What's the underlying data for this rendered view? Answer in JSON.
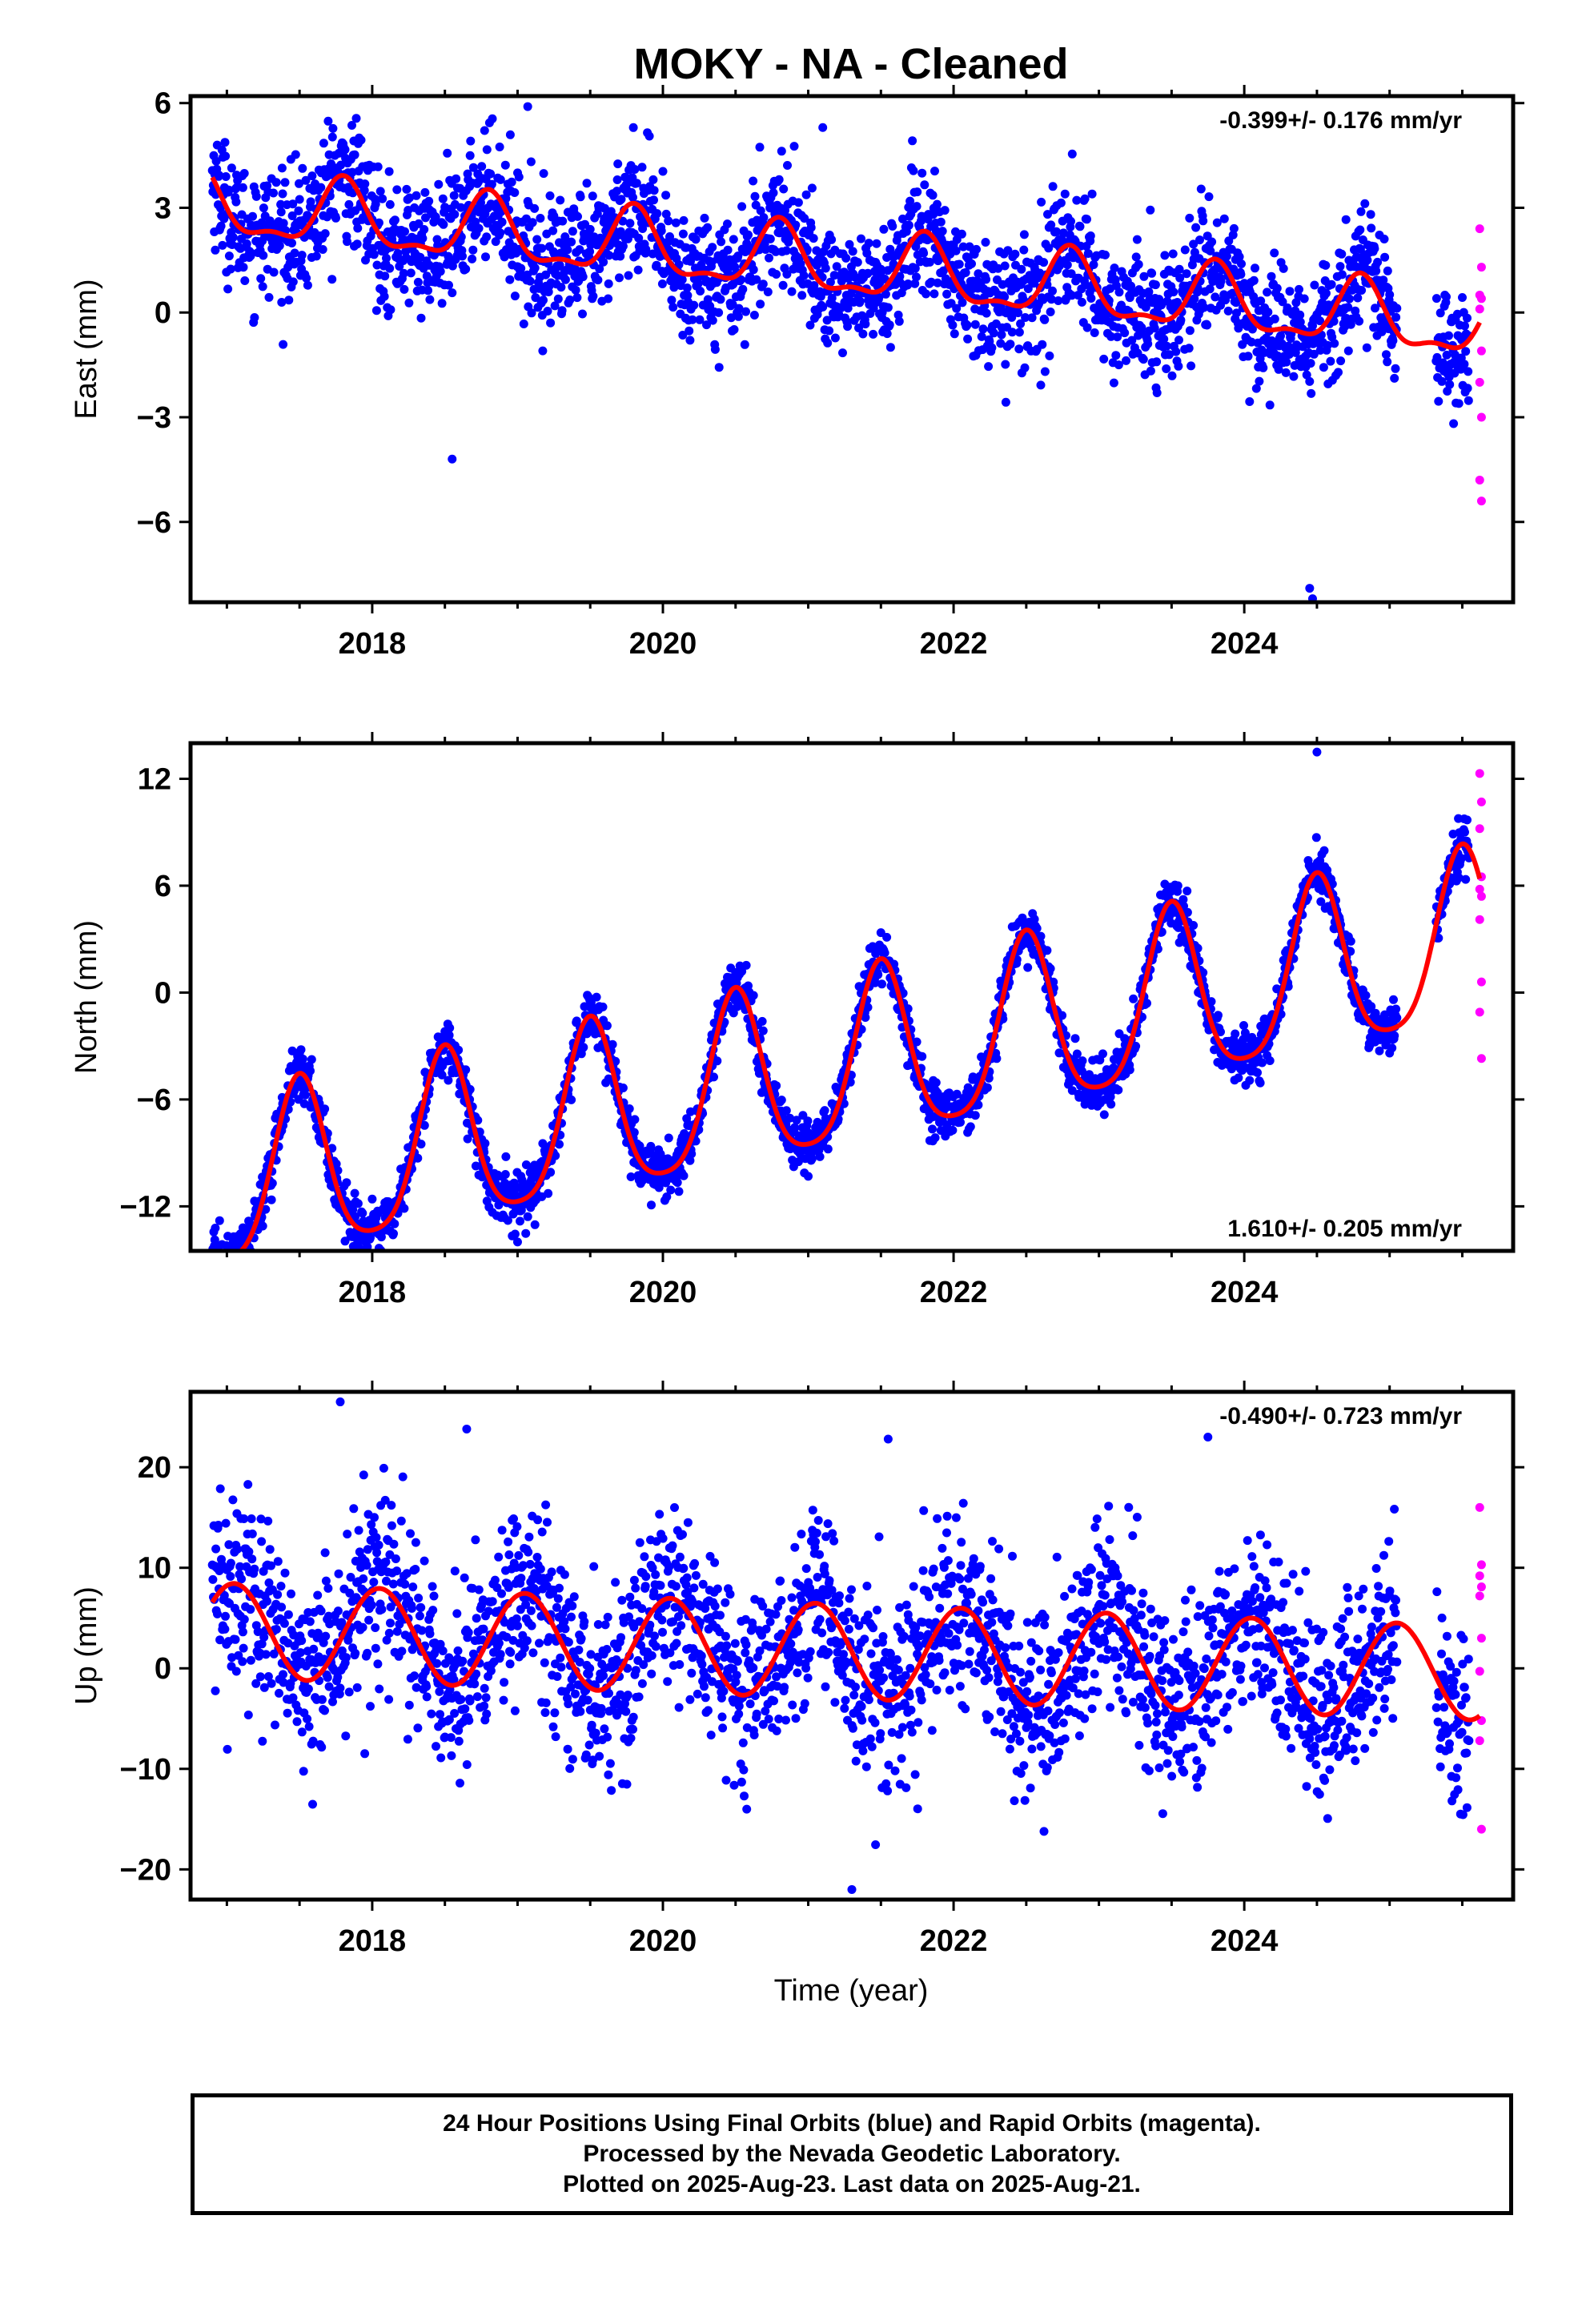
{
  "title": "MOKY  - NA - Cleaned",
  "x_axis_label": "Time (year)",
  "colors": {
    "final_orbits": "#0000ff",
    "rapid_orbits": "#ff00ff",
    "model_fit": "#ff0000"
  },
  "footer": {
    "line1": "24 Hour Positions Using Final Orbits (blue) and Rapid Orbits (magenta).",
    "line2": "Processed by the Nevada Geodetic Laboratory.",
    "line3": "Plotted on 2025-Aug-23. Last data on 2025-Aug-21."
  },
  "chart_data": [
    {
      "type": "scatter",
      "panel": "east",
      "ylabel": "East (mm)",
      "rate": "-0.399+/- 0.176 mm/yr",
      "rate_position": "top-right",
      "xlim": [
        2016.75,
        2025.85
      ],
      "ylim": [
        -8.3,
        6.2
      ],
      "xticks": [
        2018,
        2020,
        2022,
        2024
      ],
      "xtick_labels": [
        "2018",
        "2020",
        "2022",
        "2024"
      ],
      "yticks": [
        -6,
        -3,
        0,
        3,
        6
      ],
      "ytick_labels": [
        "−6",
        "−3",
        "0",
        "3",
        "6"
      ],
      "grid": false,
      "trend": {
        "slope": -0.399,
        "intercept": 1.4,
        "annual_amp": 0.9,
        "semiannual_amp": 0.35,
        "phase": 0.3
      },
      "scatter": {
        "sd": 0.9,
        "points_per_year": 300
      },
      "outliers": [
        [
          2019.07,
          5.9
        ],
        [
          2021.1,
          5.3
        ],
        [
          2024.45,
          -7.9
        ],
        [
          2024.47,
          -8.2
        ],
        [
          2018.55,
          -4.2
        ]
      ],
      "rapid": {
        "x": 2025.62,
        "y": [
          2.4,
          1.3,
          0.5,
          0.4,
          0.1,
          -1.1,
          -2.0,
          -3.0,
          -4.8,
          -5.4
        ]
      }
    },
    {
      "type": "scatter",
      "panel": "north",
      "ylabel": "North (mm)",
      "rate": "1.610+/- 0.205 mm/yr",
      "rate_position": "bottom-right",
      "xlim": [
        2016.75,
        2025.85
      ],
      "ylim": [
        -14.5,
        14.0
      ],
      "xticks": [
        2018,
        2020,
        2022,
        2024
      ],
      "xtick_labels": [
        "2018",
        "2020",
        "2022",
        "2024"
      ],
      "yticks": [
        -12,
        -6,
        0,
        6,
        12
      ],
      "ytick_labels": [
        "−12",
        "−6",
        "0",
        "6",
        "12"
      ],
      "grid": false,
      "trend": {
        "slope": 1.61,
        "intercept": -4.6,
        "annual_amp": 4.8,
        "semiannual_amp": 0.9,
        "phase": 0.0
      },
      "scatter": {
        "sd": 0.75,
        "points_per_year": 300
      },
      "outliers": [
        [
          2019.0,
          -14.0
        ],
        [
          2024.5,
          13.5
        ]
      ],
      "rapid": {
        "x": 2025.62,
        "y": [
          12.3,
          10.7,
          9.2,
          6.5,
          5.8,
          5.4,
          4.1,
          0.6,
          -1.1,
          -3.7
        ]
      }
    },
    {
      "type": "scatter",
      "panel": "up",
      "ylabel": "Up (mm)",
      "rate": "-0.490+/- 0.723 mm/yr",
      "rate_position": "top-right",
      "xlim": [
        2016.75,
        2025.85
      ],
      "ylim": [
        -23.0,
        27.5
      ],
      "xticks": [
        2018,
        2020,
        2022,
        2024
      ],
      "xtick_labels": [
        "2018",
        "2020",
        "2022",
        "2024"
      ],
      "yticks": [
        -20,
        -10,
        0,
        10,
        20
      ],
      "ytick_labels": [
        "−20",
        "−10",
        "0",
        "10",
        "20"
      ],
      "grid": false,
      "trend": {
        "slope": -0.49,
        "intercept": 1.8,
        "annual_amp": 4.7,
        "semiannual_amp": 0.0,
        "phase": 0.55
      },
      "scatter": {
        "sd": 4.6,
        "points_per_year": 290
      },
      "outliers": [
        [
          2017.78,
          26.5
        ],
        [
          2018.65,
          23.8
        ],
        [
          2021.55,
          22.8
        ],
        [
          2023.75,
          23.0
        ],
        [
          2021.3,
          -22.0
        ]
      ],
      "rapid": {
        "x": 2025.62,
        "y": [
          16.0,
          10.3,
          9.2,
          8.1,
          7.2,
          3.0,
          -0.3,
          -5.2,
          -7.2,
          -16.0
        ]
      }
    }
  ]
}
